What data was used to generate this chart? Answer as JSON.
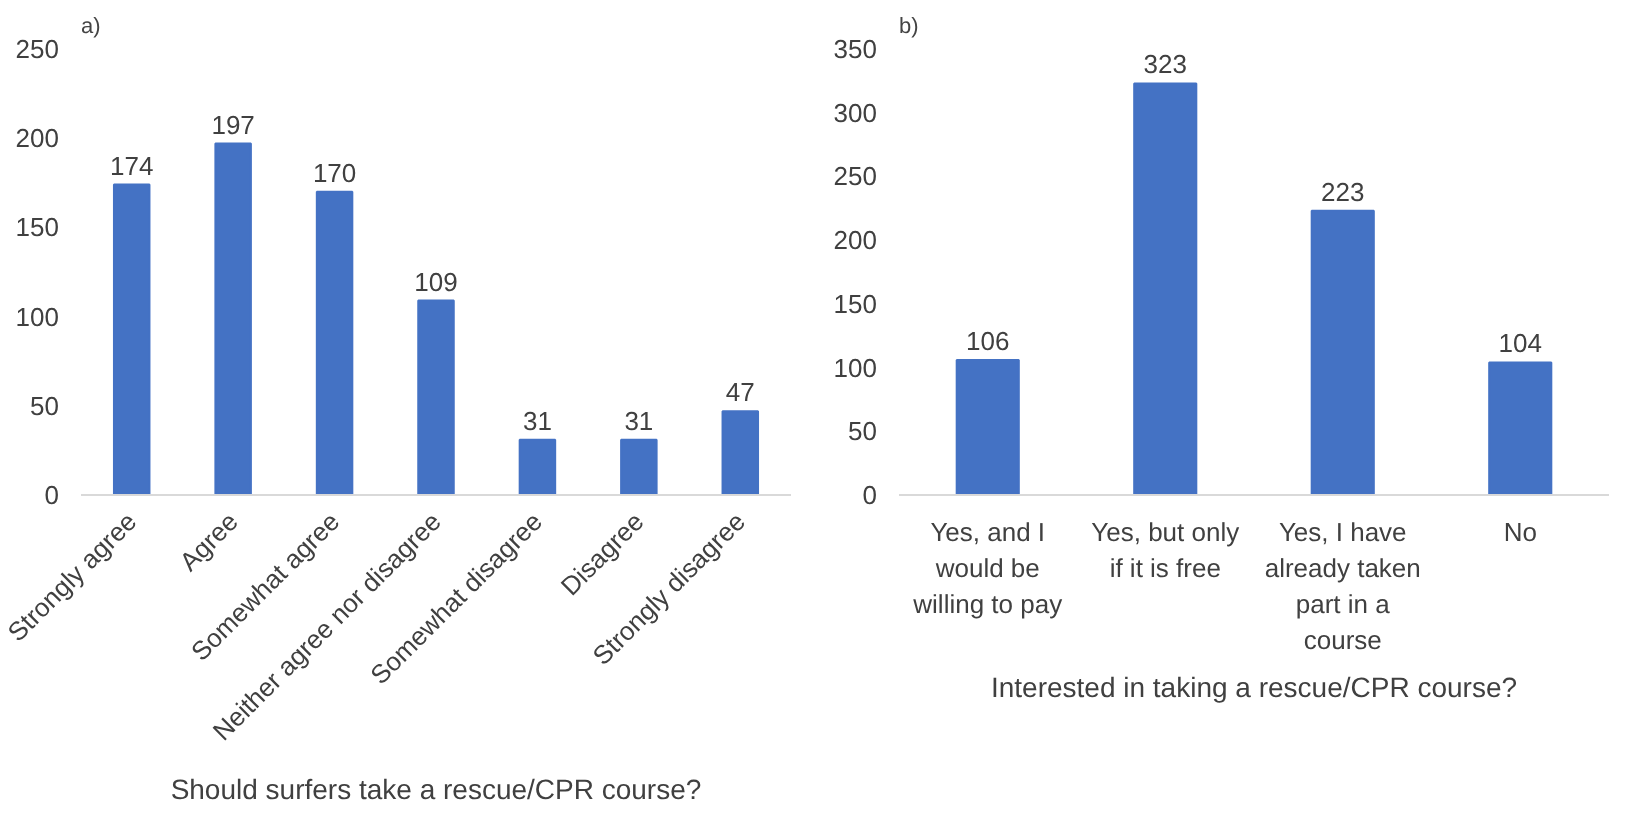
{
  "chart_data": [
    {
      "type": "bar",
      "title": "a)",
      "xlabel": "Should surfers take a rescue/CPR course?",
      "categories": [
        "Strongly agree",
        "Agree",
        "Somewhat agree",
        "Neither agree nor disagree",
        "Somewhat disagree",
        "Disagree",
        "Strongly disagree"
      ],
      "values": [
        174,
        197,
        170,
        109,
        31,
        31,
        47
      ],
      "color": "#4472c4",
      "ylim": [
        0,
        250
      ],
      "yticks": [
        0,
        50,
        100,
        150,
        200,
        250
      ],
      "data_labels": true,
      "grid": false
    },
    {
      "type": "bar",
      "title": "b)",
      "xlabel": "Interested in taking a rescue/CPR course?",
      "categories": [
        "Yes, and I would be willing to pay",
        "Yes, but only if it is free",
        "Yes, I have already taken part in a course",
        "No"
      ],
      "values": [
        106,
        323,
        223,
        104
      ],
      "color": "#4472c4",
      "ylim": [
        0,
        350
      ],
      "yticks": [
        0,
        50,
        100,
        150,
        200,
        250,
        300,
        350
      ],
      "data_labels": true,
      "grid": false
    }
  ]
}
